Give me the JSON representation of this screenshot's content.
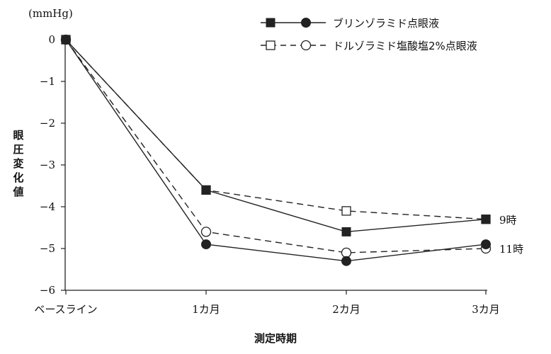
{
  "chart_data": {
    "type": "line",
    "unit_label": "(mmHg)",
    "ylabel": "眼圧変化値",
    "xlabel": "測定時期",
    "categories": [
      "ベースライン",
      "1カ月",
      "2カ月",
      "3カ月"
    ],
    "ylim": [
      -6,
      0
    ],
    "yticks": [
      "0",
      "−1",
      "−2",
      "−3",
      "−4",
      "−5",
      "−6"
    ],
    "ytick_values": [
      0,
      -1,
      -2,
      -3,
      -4,
      -5,
      -6
    ],
    "legend_position": "top-right",
    "series": [
      {
        "name": "ブリンゾラミド点眼液",
        "time": "9時",
        "values": [
          0,
          -3.6,
          -4.6,
          -4.3
        ],
        "line": "solid",
        "marker": "filled-square"
      },
      {
        "name": "ブリンゾラミド点眼液",
        "time": "11時",
        "values": [
          0,
          -4.9,
          -5.3,
          -4.9
        ],
        "line": "solid",
        "marker": "filled-circle"
      },
      {
        "name": "ドルゾラミド塩酸塩2%点眼液",
        "time": "9時",
        "values": [
          0,
          -3.6,
          -4.1,
          -4.3
        ],
        "line": "dashed",
        "marker": "open-square"
      },
      {
        "name": "ドルゾラミド塩酸塩2%点眼液",
        "time": "11時",
        "values": [
          0,
          -4.6,
          -5.1,
          -5.0
        ],
        "line": "dashed",
        "marker": "open-circle"
      }
    ],
    "legend": [
      {
        "label": "ブリンゾラミド点眼液",
        "line": "solid",
        "markers": [
          "filled-square",
          "filled-circle"
        ]
      },
      {
        "label": "ドルゾラミド塩酸塩2%点眼液",
        "line": "dashed",
        "markers": [
          "open-square",
          "open-circle"
        ]
      }
    ],
    "end_labels": [
      "9時",
      "11時"
    ],
    "colors": {
      "ink": "#222222",
      "background": "#ffffff"
    }
  }
}
